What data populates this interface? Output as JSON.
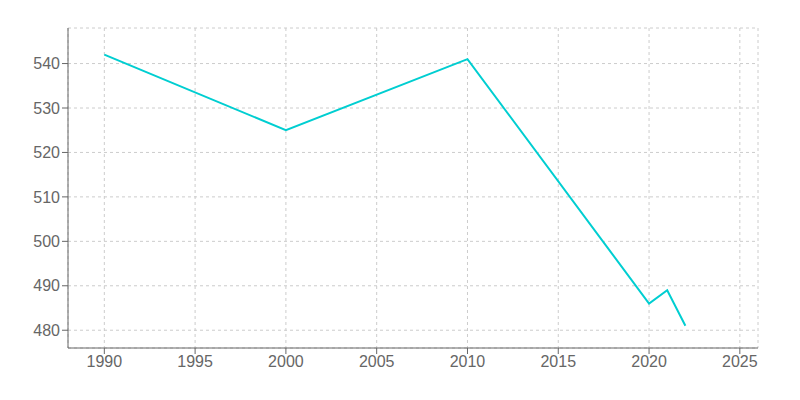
{
  "chart_data": {
    "type": "line",
    "x": [
      1990,
      2000,
      2010,
      2020,
      2021,
      2022
    ],
    "values": [
      542,
      525,
      541,
      486,
      489,
      481
    ],
    "color": "#00CED1",
    "xlim": [
      1988,
      2026
    ],
    "ylim": [
      476,
      548
    ],
    "xticks": [
      1990,
      1995,
      2000,
      2005,
      2010,
      2015,
      2020,
      2025
    ],
    "yticks": [
      480,
      490,
      500,
      510,
      520,
      530,
      540
    ],
    "grid": true
  }
}
